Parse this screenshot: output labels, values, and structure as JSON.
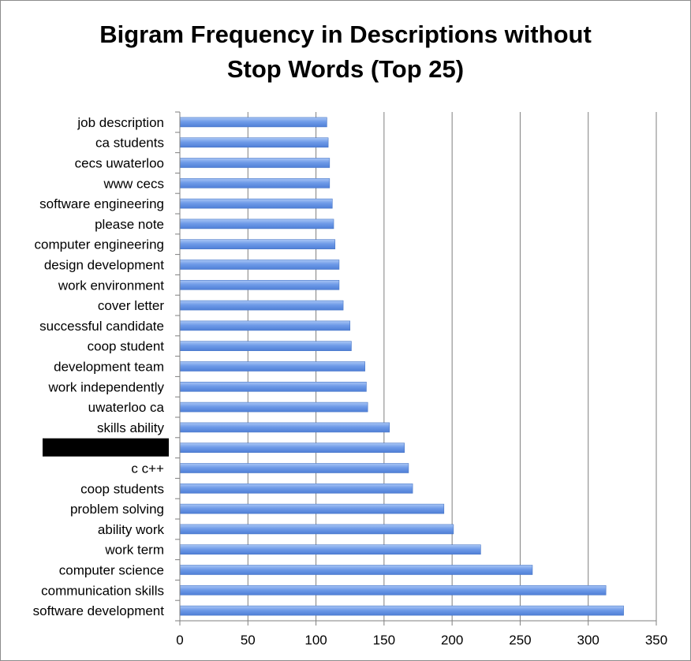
{
  "chart_data": {
    "type": "bar",
    "orientation": "horizontal",
    "title_lines": [
      "Bigram Frequency in Descriptions without",
      "Stop Words (Top 25)"
    ],
    "categories": [
      "job description",
      "ca students",
      "cecs uwaterloo",
      "www cecs",
      "software engineering",
      "please note",
      "computer engineering",
      "design development",
      "work environment",
      "cover letter",
      "successful candidate",
      "coop student",
      "development team",
      "work independently",
      "uwaterloo ca",
      "skills ability",
      "",
      "c c++",
      "coop students",
      "problem solving",
      "ability work",
      "work term",
      "computer science",
      "communication skills",
      "software development"
    ],
    "redacted_category_index": 16,
    "values": [
      108,
      109,
      110,
      110,
      112,
      113,
      114,
      117,
      117,
      120,
      125,
      126,
      136,
      137,
      138,
      154,
      165,
      168,
      171,
      194,
      201,
      221,
      259,
      313,
      326
    ],
    "x_ticks": [
      "0",
      "50",
      "100",
      "150",
      "200",
      "250",
      "300",
      "350"
    ],
    "xlim": [
      0,
      350
    ],
    "grid": true,
    "legend": "none",
    "colors": {
      "bar_fill": "#6f9be8",
      "bar_edge": "#4a78c8",
      "grid": "#7f7f7f",
      "axis": "#7f7f7f",
      "redaction": "#000000"
    }
  }
}
